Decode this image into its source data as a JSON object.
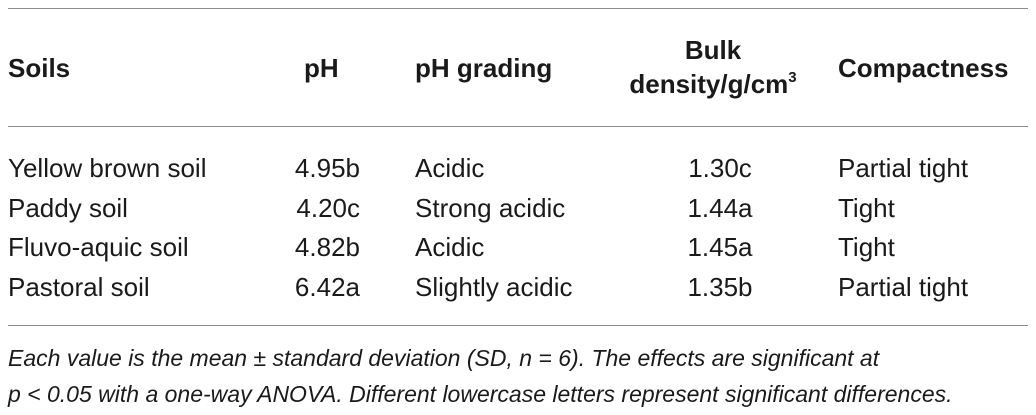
{
  "table": {
    "headers": {
      "soils": "Soils",
      "ph": "pH",
      "ph_grading": "pH grading",
      "bulk_line1": "Bulk",
      "bulk_line2": "density/g/cm",
      "bulk_sup": "3",
      "compactness": "Compactness"
    },
    "rows": [
      {
        "soil": "Yellow brown soil",
        "ph": "4.95b",
        "grading": "Acidic",
        "bulk": "1.30c",
        "compactness": "Partial tight"
      },
      {
        "soil": "Paddy soil",
        "ph": "4.20c",
        "grading": "Strong acidic",
        "bulk": "1.44a",
        "compactness": "Tight"
      },
      {
        "soil": "Fluvo-aquic soil",
        "ph": "4.82b",
        "grading": "Acidic",
        "bulk": "1.45a",
        "compactness": "Tight"
      },
      {
        "soil": "Pastoral soil",
        "ph": "6.42a",
        "grading": "Slightly acidic",
        "bulk": "1.35b",
        "compactness": "Partial tight"
      }
    ],
    "footnote": {
      "line1": "Each value is the mean ± standard deviation (SD, n = 6). The effects are significant at",
      "line2": "p < 0.05 with a one-way ANOVA. Different lowercase letters represent significant differences."
    }
  }
}
